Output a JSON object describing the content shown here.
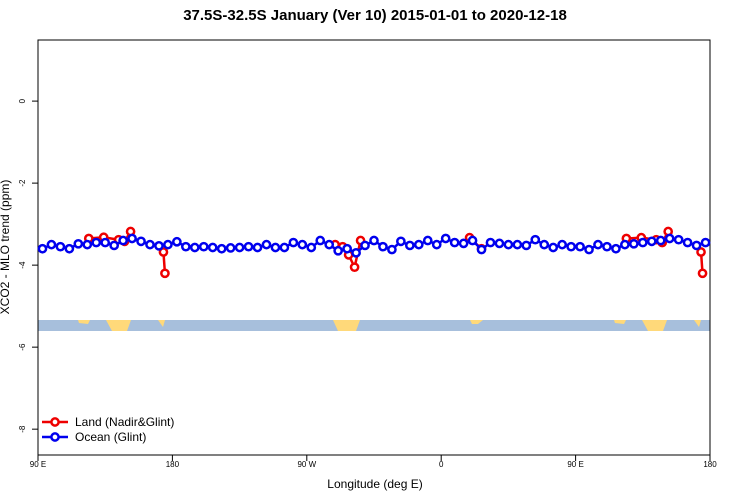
{
  "chart_data": {
    "type": "line",
    "title": "37.5S-32.5S January (Ver 10)   2015-01-01 to 2020-12-18",
    "x_label": "Longitude (deg E)",
    "y_label": "XCO2 - MLO trend (ppm)",
    "xlim": [
      90,
      540
    ],
    "ylim": [
      1.49,
      -8.63
    ],
    "xticks": [
      {
        "value": 90,
        "label": "90 E"
      },
      180,
      {
        "value": 270,
        "label": "90 W"
      },
      {
        "value": 360,
        "label": "0"
      },
      {
        "value": 450,
        "label": "90 E"
      },
      {
        "value": 540,
        "label": "180"
      }
    ],
    "yticks": [
      0,
      -2,
      -4,
      -6,
      -8
    ],
    "legend": "bottom-left",
    "series": [
      {
        "name": "Land (Nadir&Glint)",
        "color": "#ee0000",
        "x": [
          124,
          134,
          144,
          148,
          152,
          null,
          174,
          175,
          null,
          289,
          294,
          298,
          302,
          306,
          null,
          379,
          387,
          null,
          484,
          494,
          504,
          508,
          512,
          null,
          534,
          535
        ],
        "values": [
          -3.35,
          -3.32,
          -3.38,
          -3.42,
          -3.18,
          null,
          -3.68,
          -4.2,
          null,
          -3.5,
          -3.55,
          -3.75,
          -4.05,
          -3.4,
          null,
          -3.33,
          -3.6,
          null,
          -3.35,
          -3.33,
          -3.38,
          -3.45,
          -3.18,
          null,
          -3.68,
          -4.2
        ]
      },
      {
        "name": "Ocean (Glint)",
        "color": "#0000ee",
        "x": [
          93,
          99,
          105,
          111,
          117,
          123,
          129,
          135,
          141,
          147,
          153,
          159,
          165,
          171,
          177,
          183,
          189,
          195,
          201,
          207,
          213,
          219,
          225,
          231,
          237,
          243,
          249,
          255,
          261,
          267,
          273,
          279,
          285,
          291,
          297,
          303,
          309,
          315,
          321,
          327,
          333,
          339,
          345,
          351,
          357,
          363,
          369,
          375,
          381,
          387,
          393,
          399,
          405,
          411,
          417,
          423,
          429,
          435,
          441,
          447,
          453,
          459,
          465,
          471,
          477,
          483,
          489,
          495,
          501,
          507,
          513,
          519,
          525,
          531,
          537
        ],
        "values": [
          -3.6,
          -3.5,
          -3.55,
          -3.6,
          -3.48,
          -3.5,
          -3.45,
          -3.45,
          -3.52,
          -3.4,
          -3.35,
          -3.42,
          -3.5,
          -3.53,
          -3.5,
          -3.43,
          -3.55,
          -3.57,
          -3.55,
          -3.57,
          -3.6,
          -3.58,
          -3.57,
          -3.55,
          -3.57,
          -3.5,
          -3.57,
          -3.57,
          -3.45,
          -3.5,
          -3.57,
          -3.4,
          -3.5,
          -3.65,
          -3.6,
          -3.7,
          -3.52,
          -3.4,
          -3.55,
          -3.62,
          -3.42,
          -3.52,
          -3.5,
          -3.4,
          -3.5,
          -3.35,
          -3.45,
          -3.47,
          -3.4,
          -3.62,
          -3.45,
          -3.47,
          -3.5,
          -3.5,
          -3.52,
          -3.38,
          -3.5,
          -3.57,
          -3.5,
          -3.55,
          -3.55,
          -3.62,
          -3.5,
          -3.55,
          -3.6,
          -3.5,
          -3.48,
          -3.45,
          -3.42,
          -3.4,
          -3.35,
          -3.38,
          -3.45,
          -3.52,
          -3.45
        ]
      }
    ]
  }
}
